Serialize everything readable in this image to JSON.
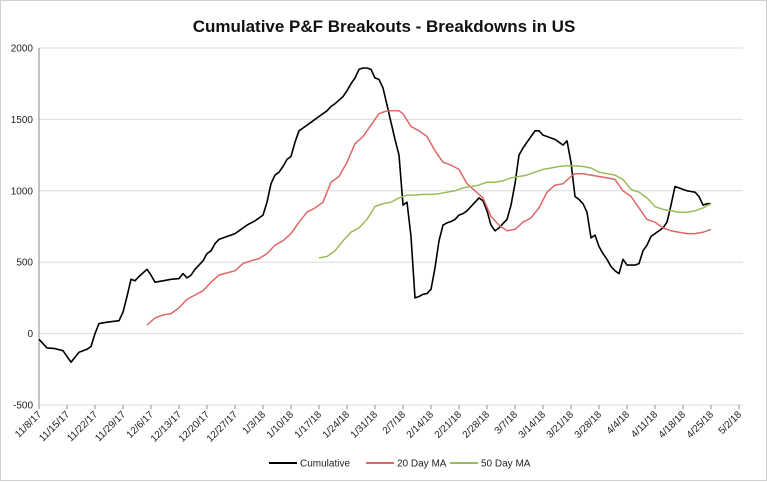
{
  "chart_data": {
    "type": "line",
    "title": "Cumulative P&F Breakouts - Breakdowns in US",
    "xlabel": "",
    "ylabel": "",
    "ylim": [
      -500,
      2000
    ],
    "yticks": [
      -500,
      0,
      500,
      1000,
      1500,
      2000
    ],
    "x_range": [
      "11/8/17",
      "5/2/18"
    ],
    "x_ticks": [
      "11/8/17",
      "11/15/17",
      "11/22/17",
      "11/29/17",
      "12/6/17",
      "12/13/17",
      "12/20/17",
      "12/27/17",
      "1/3/18",
      "1/10/18",
      "1/17/18",
      "1/24/18",
      "1/31/18",
      "2/7/18",
      "2/14/18",
      "2/21/18",
      "2/28/18",
      "3/7/18",
      "3/14/18",
      "3/21/18",
      "3/28/18",
      "4/4/18",
      "4/11/18",
      "4/18/18",
      "4/25/18",
      "5/2/18"
    ],
    "grid": "horizontal",
    "legend_position": "bottom",
    "series": [
      {
        "name": "Cumulative",
        "color": "#000000",
        "points": [
          [
            0,
            -40
          ],
          [
            2,
            -100
          ],
          [
            4,
            -105
          ],
          [
            6,
            -120
          ],
          [
            8,
            -200
          ],
          [
            10,
            -130
          ],
          [
            12,
            -110
          ],
          [
            13,
            -90
          ],
          [
            14,
            0
          ],
          [
            15,
            70
          ],
          [
            17,
            80
          ],
          [
            20,
            90
          ],
          [
            21,
            150
          ],
          [
            22,
            260
          ],
          [
            23,
            380
          ],
          [
            24,
            370
          ],
          [
            25,
            400
          ],
          [
            27,
            450
          ],
          [
            28,
            410
          ],
          [
            29,
            360
          ],
          [
            31,
            370
          ],
          [
            33,
            380
          ],
          [
            35,
            385
          ],
          [
            36,
            420
          ],
          [
            37,
            390
          ],
          [
            38,
            410
          ],
          [
            39,
            450
          ],
          [
            41,
            510
          ],
          [
            42,
            560
          ],
          [
            43,
            580
          ],
          [
            44,
            630
          ],
          [
            45,
            660
          ],
          [
            47,
            680
          ],
          [
            49,
            700
          ],
          [
            50,
            720
          ],
          [
            52,
            760
          ],
          [
            54,
            790
          ],
          [
            56,
            830
          ],
          [
            57,
            920
          ],
          [
            58,
            1050
          ],
          [
            59,
            1110
          ],
          [
            60,
            1130
          ],
          [
            61,
            1170
          ],
          [
            62,
            1220
          ],
          [
            63,
            1240
          ],
          [
            64,
            1340
          ],
          [
            65,
            1420
          ],
          [
            66,
            1440
          ],
          [
            68,
            1480
          ],
          [
            70,
            1520
          ],
          [
            72,
            1560
          ],
          [
            73,
            1590
          ],
          [
            74,
            1610
          ],
          [
            76,
            1660
          ],
          [
            77,
            1700
          ],
          [
            78,
            1750
          ],
          [
            79,
            1790
          ],
          [
            80,
            1850
          ],
          [
            81,
            1860
          ],
          [
            82,
            1860
          ],
          [
            83,
            1850
          ],
          [
            84,
            1790
          ],
          [
            85,
            1780
          ],
          [
            86,
            1720
          ],
          [
            87,
            1600
          ],
          [
            88,
            1480
          ],
          [
            89,
            1360
          ],
          [
            90,
            1250
          ],
          [
            91,
            900
          ],
          [
            92,
            920
          ],
          [
            93,
            680
          ],
          [
            94,
            250
          ],
          [
            95,
            260
          ],
          [
            96,
            275
          ],
          [
            97,
            280
          ],
          [
            98,
            310
          ],
          [
            99,
            460
          ],
          [
            100,
            650
          ],
          [
            101,
            760
          ],
          [
            102,
            775
          ],
          [
            103,
            785
          ],
          [
            104,
            800
          ],
          [
            105,
            830
          ],
          [
            106,
            840
          ],
          [
            107,
            860
          ],
          [
            108,
            890
          ],
          [
            109,
            920
          ],
          [
            110,
            950
          ],
          [
            111,
            930
          ],
          [
            112,
            860
          ],
          [
            113,
            760
          ],
          [
            114,
            720
          ],
          [
            115,
            740
          ],
          [
            116,
            770
          ],
          [
            117,
            800
          ],
          [
            118,
            900
          ],
          [
            119,
            1050
          ],
          [
            120,
            1250
          ],
          [
            121,
            1300
          ],
          [
            122,
            1340
          ],
          [
            123,
            1380
          ],
          [
            124,
            1420
          ],
          [
            125,
            1420
          ],
          [
            126,
            1390
          ],
          [
            127,
            1380
          ],
          [
            128,
            1370
          ],
          [
            129,
            1360
          ],
          [
            130,
            1340
          ],
          [
            131,
            1320
          ],
          [
            132,
            1350
          ],
          [
            133,
            1200
          ],
          [
            134,
            960
          ],
          [
            135,
            940
          ],
          [
            136,
            910
          ],
          [
            137,
            850
          ],
          [
            138,
            670
          ],
          [
            139,
            690
          ],
          [
            140,
            610
          ],
          [
            141,
            560
          ],
          [
            142,
            520
          ],
          [
            143,
            470
          ],
          [
            144,
            440
          ],
          [
            145,
            420
          ],
          [
            146,
            520
          ],
          [
            147,
            480
          ],
          [
            148,
            480
          ],
          [
            149,
            480
          ],
          [
            150,
            490
          ],
          [
            151,
            580
          ],
          [
            152,
            620
          ],
          [
            153,
            680
          ],
          [
            154,
            700
          ],
          [
            155,
            720
          ],
          [
            156,
            740
          ],
          [
            157,
            780
          ],
          [
            158,
            900
          ],
          [
            159,
            1030
          ],
          [
            160,
            1020
          ],
          [
            161,
            1010
          ],
          [
            162,
            1000
          ],
          [
            163,
            995
          ],
          [
            164,
            990
          ],
          [
            165,
            960
          ],
          [
            166,
            900
          ],
          [
            167,
            910
          ],
          [
            168,
            910
          ]
        ]
      },
      {
        "name": "20 Day MA",
        "color": "#e06666",
        "points": [
          [
            27,
            60
          ],
          [
            29,
            110
          ],
          [
            31,
            130
          ],
          [
            33,
            140
          ],
          [
            35,
            180
          ],
          [
            37,
            240
          ],
          [
            39,
            270
          ],
          [
            41,
            300
          ],
          [
            43,
            360
          ],
          [
            45,
            410
          ],
          [
            47,
            425
          ],
          [
            49,
            440
          ],
          [
            51,
            490
          ],
          [
            53,
            510
          ],
          [
            55,
            525
          ],
          [
            57,
            560
          ],
          [
            59,
            620
          ],
          [
            61,
            650
          ],
          [
            63,
            700
          ],
          [
            65,
            780
          ],
          [
            67,
            850
          ],
          [
            69,
            880
          ],
          [
            71,
            920
          ],
          [
            73,
            1060
          ],
          [
            75,
            1100
          ],
          [
            77,
            1200
          ],
          [
            79,
            1330
          ],
          [
            81,
            1380
          ],
          [
            83,
            1460
          ],
          [
            85,
            1540
          ],
          [
            87,
            1560
          ],
          [
            89,
            1560
          ],
          [
            90,
            1560
          ],
          [
            91,
            1540
          ],
          [
            93,
            1450
          ],
          [
            95,
            1420
          ],
          [
            97,
            1380
          ],
          [
            99,
            1280
          ],
          [
            101,
            1200
          ],
          [
            103,
            1180
          ],
          [
            105,
            1150
          ],
          [
            107,
            1050
          ],
          [
            109,
            1000
          ],
          [
            111,
            950
          ],
          [
            113,
            820
          ],
          [
            115,
            760
          ],
          [
            117,
            720
          ],
          [
            119,
            730
          ],
          [
            121,
            780
          ],
          [
            123,
            810
          ],
          [
            125,
            880
          ],
          [
            127,
            990
          ],
          [
            129,
            1040
          ],
          [
            131,
            1050
          ],
          [
            133,
            1100
          ],
          [
            134,
            1120
          ],
          [
            136,
            1120
          ],
          [
            138,
            1110
          ],
          [
            140,
            1100
          ],
          [
            142,
            1090
          ],
          [
            144,
            1080
          ],
          [
            146,
            1000
          ],
          [
            148,
            960
          ],
          [
            150,
            880
          ],
          [
            152,
            800
          ],
          [
            154,
            780
          ],
          [
            156,
            740
          ],
          [
            158,
            720
          ],
          [
            160,
            710
          ],
          [
            162,
            700
          ],
          [
            164,
            700
          ],
          [
            166,
            710
          ],
          [
            168,
            730
          ]
        ]
      },
      {
        "name": "50 Day MA",
        "color": "#9bbb59",
        "points": [
          [
            70,
            530
          ],
          [
            72,
            540
          ],
          [
            74,
            580
          ],
          [
            76,
            650
          ],
          [
            78,
            710
          ],
          [
            80,
            740
          ],
          [
            82,
            800
          ],
          [
            84,
            890
          ],
          [
            86,
            910
          ],
          [
            88,
            920
          ],
          [
            90,
            950
          ],
          [
            92,
            970
          ],
          [
            94,
            970
          ],
          [
            96,
            975
          ],
          [
            98,
            975
          ],
          [
            100,
            980
          ],
          [
            102,
            990
          ],
          [
            104,
            1000
          ],
          [
            106,
            1020
          ],
          [
            108,
            1030
          ],
          [
            110,
            1040
          ],
          [
            112,
            1060
          ],
          [
            114,
            1060
          ],
          [
            116,
            1070
          ],
          [
            118,
            1090
          ],
          [
            120,
            1100
          ],
          [
            122,
            1110
          ],
          [
            124,
            1130
          ],
          [
            126,
            1150
          ],
          [
            128,
            1160
          ],
          [
            130,
            1170
          ],
          [
            132,
            1175
          ],
          [
            134,
            1175
          ],
          [
            136,
            1170
          ],
          [
            138,
            1160
          ],
          [
            140,
            1130
          ],
          [
            142,
            1120
          ],
          [
            144,
            1110
          ],
          [
            146,
            1080
          ],
          [
            148,
            1010
          ],
          [
            150,
            990
          ],
          [
            152,
            950
          ],
          [
            154,
            890
          ],
          [
            156,
            870
          ],
          [
            158,
            860
          ],
          [
            160,
            850
          ],
          [
            162,
            850
          ],
          [
            164,
            860
          ],
          [
            166,
            880
          ],
          [
            168,
            910
          ]
        ]
      }
    ]
  }
}
